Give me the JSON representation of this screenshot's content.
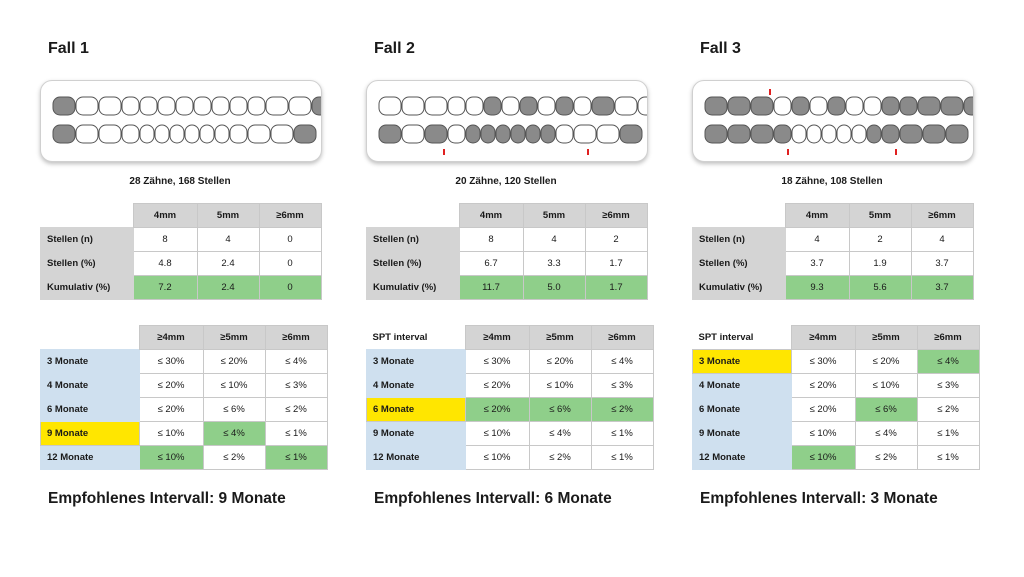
{
  "panels": [
    {
      "title": "Fall 1",
      "summary": "28 Zähne, 168 Stellen",
      "table1": {
        "headers": [
          "4mm",
          "5mm",
          "≥6mm"
        ],
        "rows": [
          {
            "label": "Stellen (n)",
            "values": [
              "8",
              "4",
              "0"
            ],
            "green": [
              false,
              false,
              false
            ]
          },
          {
            "label": "Stellen (%)",
            "values": [
              "4.8",
              "2.4",
              "0"
            ],
            "green": [
              false,
              false,
              false
            ]
          },
          {
            "label": "Kumulativ (%)",
            "values": [
              "7.2",
              "2.4",
              "0"
            ],
            "green": [
              true,
              true,
              true
            ]
          }
        ]
      },
      "table2": {
        "corner": "",
        "headers": [
          "≥4mm",
          "≥5mm",
          "≥6mm"
        ],
        "rows": [
          {
            "label": "3 Monate",
            "values": [
              "≤ 30%",
              "≤ 20%",
              "≤ 4%"
            ],
            "green": [
              false,
              false,
              false
            ],
            "yellow": false
          },
          {
            "label": "4 Monate",
            "values": [
              "≤ 20%",
              "≤ 10%",
              "≤ 3%"
            ],
            "green": [
              false,
              false,
              false
            ],
            "yellow": false
          },
          {
            "label": "6 Monate",
            "values": [
              "≤ 20%",
              "≤ 6%",
              "≤ 2%"
            ],
            "green": [
              false,
              false,
              false
            ],
            "yellow": false
          },
          {
            "label": "9 Monate",
            "values": [
              "≤ 10%",
              "≤ 4%",
              "≤ 1%"
            ],
            "green": [
              false,
              true,
              false
            ],
            "yellow": true
          },
          {
            "label": "12 Monate",
            "values": [
              "≤ 10%",
              "≤ 2%",
              "≤ 1%"
            ],
            "green": [
              true,
              false,
              true
            ],
            "yellow": false
          }
        ]
      },
      "recommendation": "Empfohlenes Intervall: 9 Monate"
    },
    {
      "title": "Fall 2",
      "summary": "20 Zähne, 120 Stellen",
      "table1": {
        "headers": [
          "4mm",
          "5mm",
          "≥6mm"
        ],
        "rows": [
          {
            "label": "Stellen (n)",
            "values": [
              "8",
              "4",
              "2"
            ],
            "green": [
              false,
              false,
              false
            ]
          },
          {
            "label": "Stellen (%)",
            "values": [
              "6.7",
              "3.3",
              "1.7"
            ],
            "green": [
              false,
              false,
              false
            ]
          },
          {
            "label": "Kumulativ (%)",
            "values": [
              "11.7",
              "5.0",
              "1.7"
            ],
            "green": [
              true,
              true,
              true
            ]
          }
        ]
      },
      "table2": {
        "corner": "SPT interval",
        "headers": [
          "≥4mm",
          "≥5mm",
          "≥6mm"
        ],
        "rows": [
          {
            "label": "3 Monate",
            "values": [
              "≤ 30%",
              "≤ 20%",
              "≤ 4%"
            ],
            "green": [
              false,
              false,
              false
            ],
            "yellow": false
          },
          {
            "label": "4 Monate",
            "values": [
              "≤ 20%",
              "≤ 10%",
              "≤ 3%"
            ],
            "green": [
              false,
              false,
              false
            ],
            "yellow": false
          },
          {
            "label": "6 Monate",
            "values": [
              "≤ 20%",
              "≤ 6%",
              "≤ 2%"
            ],
            "green": [
              true,
              true,
              true
            ],
            "yellow": true
          },
          {
            "label": "9 Monate",
            "values": [
              "≤ 10%",
              "≤ 4%",
              "≤ 1%"
            ],
            "green": [
              false,
              false,
              false
            ],
            "yellow": false
          },
          {
            "label": "12 Monate",
            "values": [
              "≤ 10%",
              "≤ 2%",
              "≤ 1%"
            ],
            "green": [
              false,
              false,
              false
            ],
            "yellow": false
          }
        ]
      },
      "recommendation": "Empfohlenes Intervall: 6 Monate"
    },
    {
      "title": "Fall 3",
      "summary": "18 Zähne, 108 Stellen",
      "table1": {
        "headers": [
          "4mm",
          "5mm",
          "≥6mm"
        ],
        "rows": [
          {
            "label": "Stellen (n)",
            "values": [
              "4",
              "2",
              "4"
            ],
            "green": [
              false,
              false,
              false
            ]
          },
          {
            "label": "Stellen (%)",
            "values": [
              "3.7",
              "1.9",
              "3.7"
            ],
            "green": [
              false,
              false,
              false
            ]
          },
          {
            "label": "Kumulativ (%)",
            "values": [
              "9.3",
              "5.6",
              "3.7"
            ],
            "green": [
              true,
              true,
              true
            ]
          }
        ]
      },
      "table2": {
        "corner": "SPT interval",
        "headers": [
          "≥4mm",
          "≥5mm",
          "≥6mm"
        ],
        "rows": [
          {
            "label": "3 Monate",
            "values": [
              "≤ 30%",
              "≤ 20%",
              "≤ 4%"
            ],
            "green": [
              false,
              false,
              true
            ],
            "yellow": true
          },
          {
            "label": "4 Monate",
            "values": [
              "≤ 20%",
              "≤ 10%",
              "≤ 3%"
            ],
            "green": [
              false,
              false,
              false
            ],
            "yellow": false
          },
          {
            "label": "6 Monate",
            "values": [
              "≤ 20%",
              "≤ 6%",
              "≤ 2%"
            ],
            "green": [
              false,
              true,
              false
            ],
            "yellow": false
          },
          {
            "label": "9 Monate",
            "values": [
              "≤ 10%",
              "≤ 4%",
              "≤ 1%"
            ],
            "green": [
              false,
              false,
              false
            ],
            "yellow": false
          },
          {
            "label": "12 Monate",
            "values": [
              "≤ 10%",
              "≤ 2%",
              "≤ 1%"
            ],
            "green": [
              true,
              false,
              false
            ],
            "yellow": false
          }
        ]
      },
      "recommendation": "Empfohlenes Intervall: 3 Monate"
    }
  ],
  "colors": {
    "header_grey": "#d4d4d4",
    "label_blue": "#cfe0ef",
    "highlight_green": "#8fcf8a",
    "highlight_yellow": "#ffe600",
    "missing_tooth": "#8a8a8a",
    "pocket_red": "#e02020"
  }
}
